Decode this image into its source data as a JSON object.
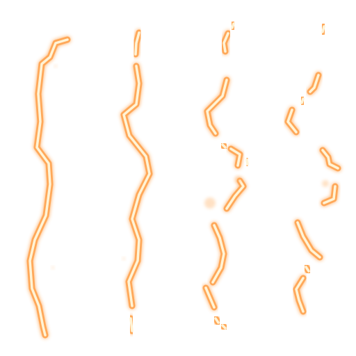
{
  "sprite_sheet": {
    "background": "#ffffff",
    "colors": {
      "glow_outer": "#ff9a3c",
      "glow_mid": "#ffb36b",
      "core": "#fff4d6",
      "highlight": "#ffffff"
    },
    "frames": [
      {
        "name": "bolt-frame-1",
        "state": "solid"
      },
      {
        "name": "bolt-frame-2",
        "state": "solid-gap"
      },
      {
        "name": "bolt-frame-3",
        "state": "breaking"
      },
      {
        "name": "bolt-frame-4",
        "state": "dissipating"
      }
    ]
  }
}
